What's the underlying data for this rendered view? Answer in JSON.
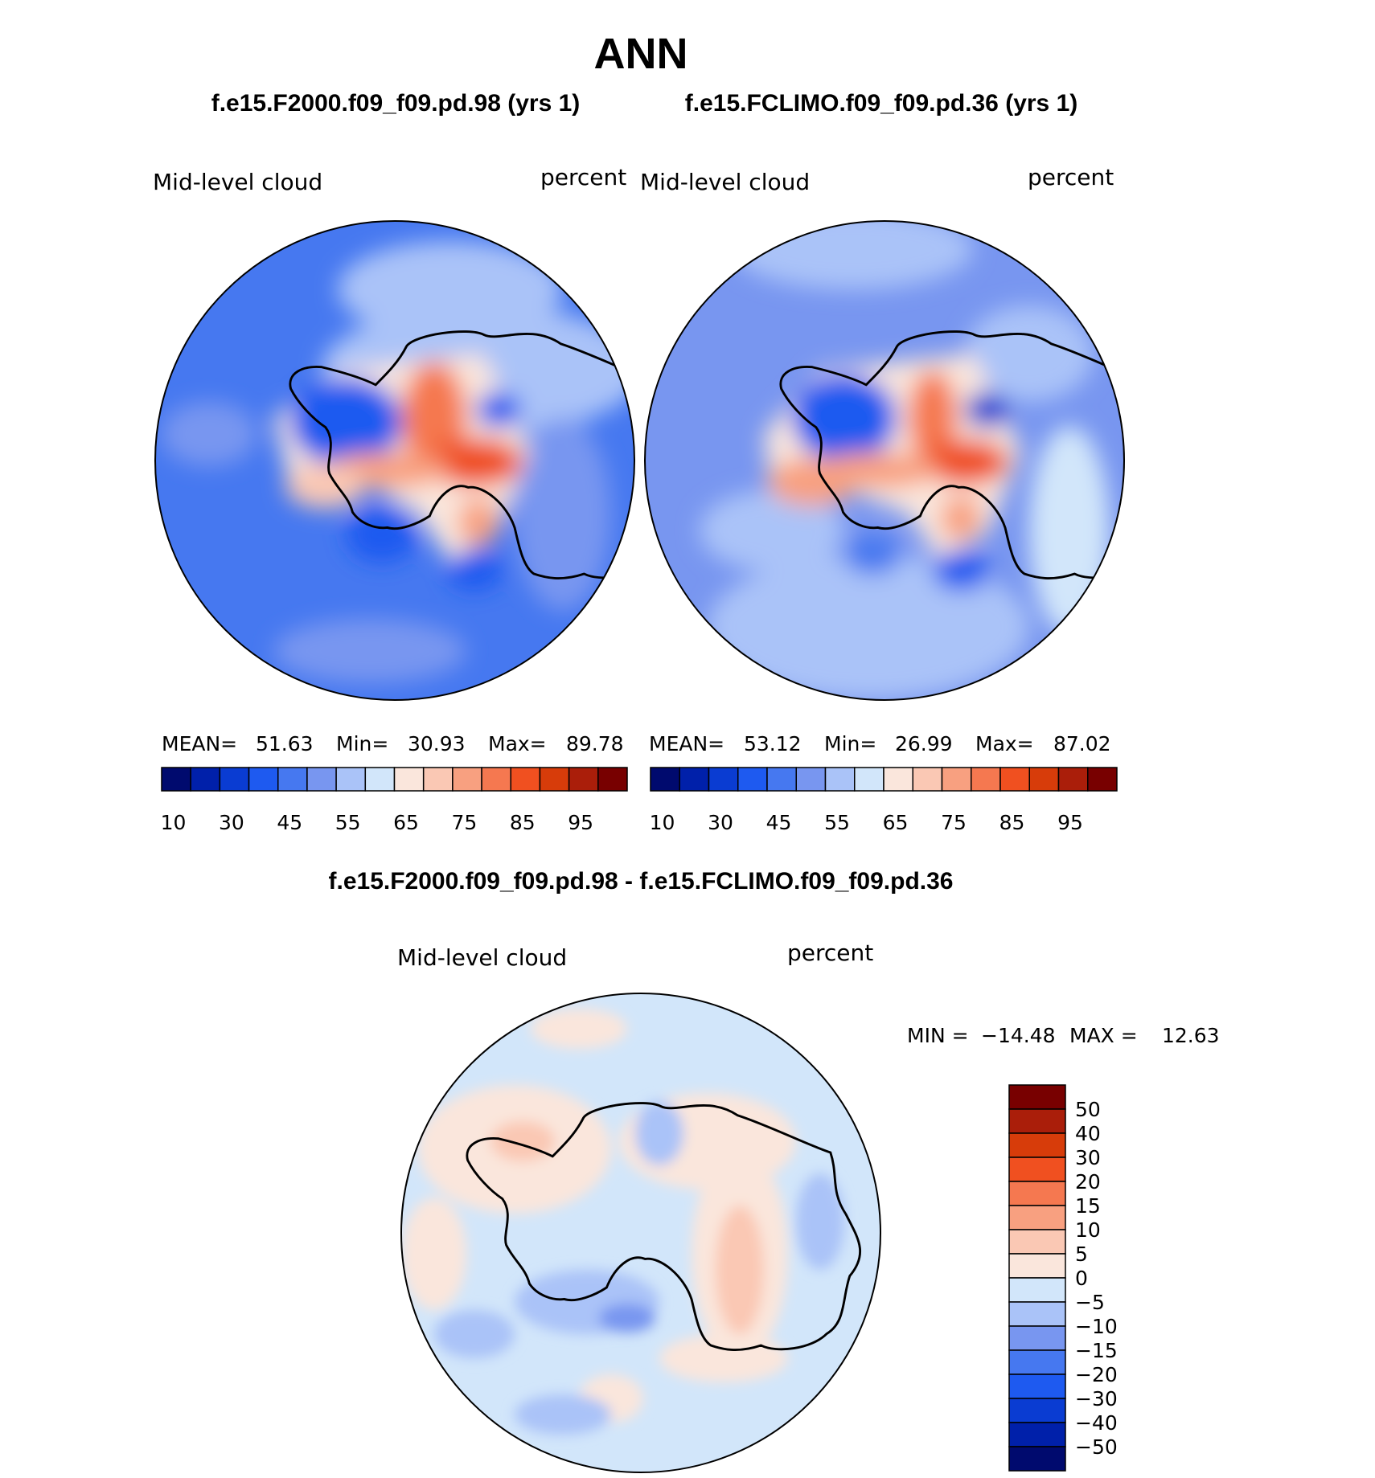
{
  "title": "ANN",
  "case1": "f.e15.F2000.f09_f09.pd.98 (yrs 1)",
  "case2": "f.e15.FCLIMO.f09_f09.pd.36 (yrs 1)",
  "diff_title": "f.e15.F2000.f09_f09.pd.98 - f.e15.FCLIMO.f09_f09.pd.36",
  "colors": {
    "abs": [
      "#000a6e",
      "#0020aa",
      "#0a3cd2",
      "#1e5af0",
      "#4678f0",
      "#7896f0",
      "#aac3f8",
      "#d2e6fa",
      "#fae6dc",
      "#fac8b4",
      "#f8a080",
      "#f57850",
      "#f05020",
      "#d73c0a",
      "#aa1e0a",
      "#780000"
    ],
    "diff": [
      "#000a6e",
      "#0020aa",
      "#0a3cd2",
      "#1e5af0",
      "#4678f0",
      "#7896f0",
      "#aac3f8",
      "#d2e6fa",
      "#fae6dc",
      "#fac8b4",
      "#f8a080",
      "#f57850",
      "#f05020",
      "#d73c0a",
      "#aa1e0a",
      "#780000"
    ]
  },
  "chart_data": [
    {
      "type": "heatmap",
      "name": "panel-1",
      "variable": "Mid-level cloud",
      "units": "percent",
      "projection": "south-polar-stereographic",
      "stats": {
        "mean_label": "MEAN=",
        "mean": "51.63",
        "min_label": "Min=",
        "min": "30.93",
        "max_label": "Max=",
        "max": "89.78"
      },
      "colorbar_labels": [
        "10",
        "30",
        "45",
        "55",
        "65",
        "75",
        "85",
        "95"
      ],
      "colorbar_levels": [
        5,
        10,
        15,
        20,
        25,
        30,
        35,
        40,
        45,
        50,
        55,
        60,
        65,
        70,
        75,
        80,
        85,
        90,
        95
      ],
      "regions": [
        {
          "lon": 0,
          "lat": -80,
          "value": 80
        },
        {
          "lon": 45,
          "lat": -75,
          "value": 85
        },
        {
          "lon": -75,
          "lat": -72,
          "value": 40
        },
        {
          "lon": 110,
          "lat": -70,
          "value": 30
        }
      ]
    },
    {
      "type": "heatmap",
      "name": "panel-2",
      "variable": "Mid-level cloud",
      "units": "percent",
      "projection": "south-polar-stereographic",
      "stats": {
        "mean_label": "MEAN=",
        "mean": "53.12",
        "min_label": "Min=",
        "min": "26.99",
        "max_label": "Max=",
        "max": "87.02"
      },
      "colorbar_labels": [
        "10",
        "30",
        "45",
        "55",
        "65",
        "75",
        "85",
        "95"
      ],
      "colorbar_levels": [
        5,
        10,
        15,
        20,
        25,
        30,
        35,
        40,
        45,
        50,
        55,
        60,
        65,
        70,
        75,
        80,
        85,
        90,
        95
      ]
    },
    {
      "type": "heatmap",
      "name": "difference",
      "variable": "Mid-level cloud",
      "units": "percent",
      "projection": "south-polar-stereographic",
      "stats": {
        "min_label": "MIN =",
        "min": "−14.48",
        "max_label": "MAX =",
        "max": "12.63"
      },
      "colorbar_labels": [
        "50",
        "40",
        "30",
        "20",
        "15",
        "10",
        "5",
        "0",
        "−5",
        "−10",
        "−15",
        "−20",
        "−30",
        "−40",
        "−50"
      ]
    }
  ]
}
